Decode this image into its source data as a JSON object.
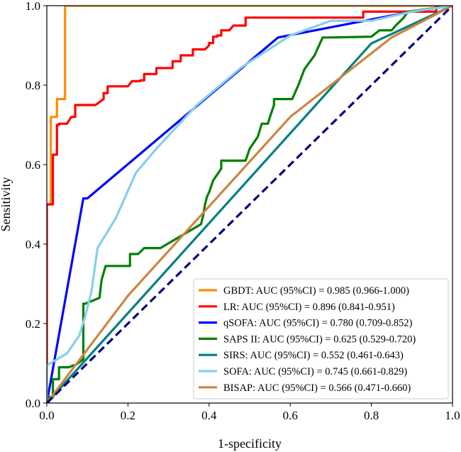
{
  "chart_data": {
    "type": "line",
    "title": "",
    "xlabel": "1-specificity",
    "ylabel": "Sensitivity",
    "xlim": [
      0.0,
      1.0
    ],
    "ylim": [
      0.0,
      1.0
    ],
    "xticks": [
      "0.0",
      "0.2",
      "0.4",
      "0.6",
      "0.8",
      "1.0"
    ],
    "yticks": [
      "0.0",
      "0.2",
      "0.4",
      "0.6",
      "0.8",
      "1.0"
    ],
    "legend_position": "lower-right",
    "series": [
      {
        "name": "GBDT: AUC (95%CI) = 0.985 (0.966-1.000)",
        "color": "#ff8c00",
        "x": [
          0.0,
          0.0,
          0.01,
          0.01,
          0.025,
          0.025,
          0.035,
          0.035,
          0.045,
          0.045,
          0.9,
          1.0
        ],
        "y": [
          0.0,
          0.5,
          0.5,
          0.72,
          0.72,
          0.765,
          0.765,
          0.765,
          0.765,
          1.0,
          1.0,
          1.0
        ]
      },
      {
        "name": "LR: AUC (95%CI) = 0.896 (0.841-0.951)",
        "color": "#ff0000",
        "x": [
          0.0,
          0.0,
          0.015,
          0.015,
          0.025,
          0.025,
          0.03,
          0.03,
          0.05,
          0.06,
          0.07,
          0.07,
          0.1,
          0.1,
          0.12,
          0.14,
          0.14,
          0.15,
          0.15,
          0.2,
          0.21,
          0.21,
          0.23,
          0.23,
          0.24,
          0.24,
          0.27,
          0.27,
          0.31,
          0.31,
          0.33,
          0.33,
          0.36,
          0.36,
          0.39,
          0.4,
          0.4,
          0.41,
          0.41,
          0.42,
          0.42,
          0.43,
          0.43,
          0.45,
          0.46,
          0.49,
          0.49,
          0.71,
          0.78,
          0.78,
          0.96,
          0.96,
          1.0
        ],
        "y": [
          0.0,
          0.5,
          0.5,
          0.625,
          0.625,
          0.7,
          0.7,
          0.703,
          0.703,
          0.72,
          0.72,
          0.75,
          0.75,
          0.75,
          0.75,
          0.765,
          0.78,
          0.78,
          0.797,
          0.797,
          0.81,
          0.81,
          0.81,
          0.812,
          0.812,
          0.828,
          0.828,
          0.843,
          0.843,
          0.86,
          0.86,
          0.875,
          0.875,
          0.89,
          0.89,
          0.9,
          0.906,
          0.906,
          0.922,
          0.922,
          0.925,
          0.925,
          0.938,
          0.938,
          0.95,
          0.95,
          0.97,
          0.97,
          0.97,
          0.985,
          0.985,
          1.0,
          1.0
        ]
      },
      {
        "name": "qSOFA: AUC (95%CI) = 0.780 (0.709-0.852)",
        "color": "#0000ff",
        "x": [
          0.0,
          0.09,
          0.1,
          0.57,
          0.9,
          1.0
        ],
        "y": [
          0.0,
          0.515,
          0.515,
          0.92,
          0.985,
          1.0
        ]
      },
      {
        "name": "SAPS II: AUC (95%CI) = 0.625 (0.529-0.720)",
        "color": "#008000",
        "x": [
          0.0,
          0.005,
          0.005,
          0.015,
          0.015,
          0.03,
          0.03,
          0.055,
          0.065,
          0.07,
          0.09,
          0.09,
          0.095,
          0.13,
          0.135,
          0.145,
          0.205,
          0.205,
          0.225,
          0.24,
          0.275,
          0.28,
          0.33,
          0.38,
          0.385,
          0.39,
          0.395,
          0.4,
          0.405,
          0.41,
          0.43,
          0.43,
          0.48,
          0.49,
          0.5,
          0.51,
          0.52,
          0.53,
          0.545,
          0.55,
          0.56,
          0.56,
          0.6,
          0.605,
          0.62,
          0.635,
          0.66,
          0.68,
          0.7,
          0.7,
          0.8,
          0.82,
          0.85,
          0.86,
          0.88,
          0.89,
          1.0
        ],
        "y": [
          0.0,
          0.0,
          0.015,
          0.015,
          0.06,
          0.06,
          0.09,
          0.09,
          0.095,
          0.095,
          0.11,
          0.25,
          0.25,
          0.265,
          0.31,
          0.345,
          0.345,
          0.375,
          0.375,
          0.39,
          0.39,
          0.39,
          0.42,
          0.45,
          0.47,
          0.5,
          0.52,
          0.53,
          0.545,
          0.56,
          0.59,
          0.61,
          0.61,
          0.61,
          0.64,
          0.655,
          0.67,
          0.703,
          0.703,
          0.72,
          0.75,
          0.765,
          0.765,
          0.765,
          0.8,
          0.84,
          0.875,
          0.92,
          0.92,
          0.92,
          0.922,
          0.938,
          0.938,
          0.95,
          0.97,
          0.985,
          1.0
        ]
      },
      {
        "name": "SIRS: AUC (95%CI) = 0.552 (0.461-0.643)",
        "color": "#008080",
        "x": [
          0.0,
          0.8,
          1.0
        ],
        "y": [
          0.0,
          0.905,
          1.0
        ]
      },
      {
        "name": "SOFA: AUC (95%CI) = 0.745 (0.661-0.829)",
        "color": "#87ceeb",
        "x": [
          0.0,
          0.0,
          0.05,
          0.08,
          0.095,
          0.11,
          0.125,
          0.17,
          0.22,
          0.27,
          0.37,
          0.48,
          0.6,
          0.7,
          0.8,
          0.9,
          1.0
        ],
        "y": [
          0.0,
          0.095,
          0.125,
          0.17,
          0.22,
          0.28,
          0.39,
          0.465,
          0.58,
          0.64,
          0.75,
          0.845,
          0.925,
          0.962,
          0.962,
          0.985,
          1.0
        ]
      },
      {
        "name": "BISAP: AUC (95%CI) = 0.566 (0.471-0.660)",
        "color": "#cd853f",
        "x": [
          0.0,
          0.2,
          0.6,
          0.85,
          1.0
        ],
        "y": [
          0.0,
          0.27,
          0.72,
          0.92,
          1.0
        ]
      }
    ],
    "reference_line": {
      "name": "diagonal",
      "color": "#000080",
      "x": [
        0.0,
        1.0
      ],
      "y": [
        0.0,
        1.0
      ],
      "style": "dashed"
    }
  }
}
